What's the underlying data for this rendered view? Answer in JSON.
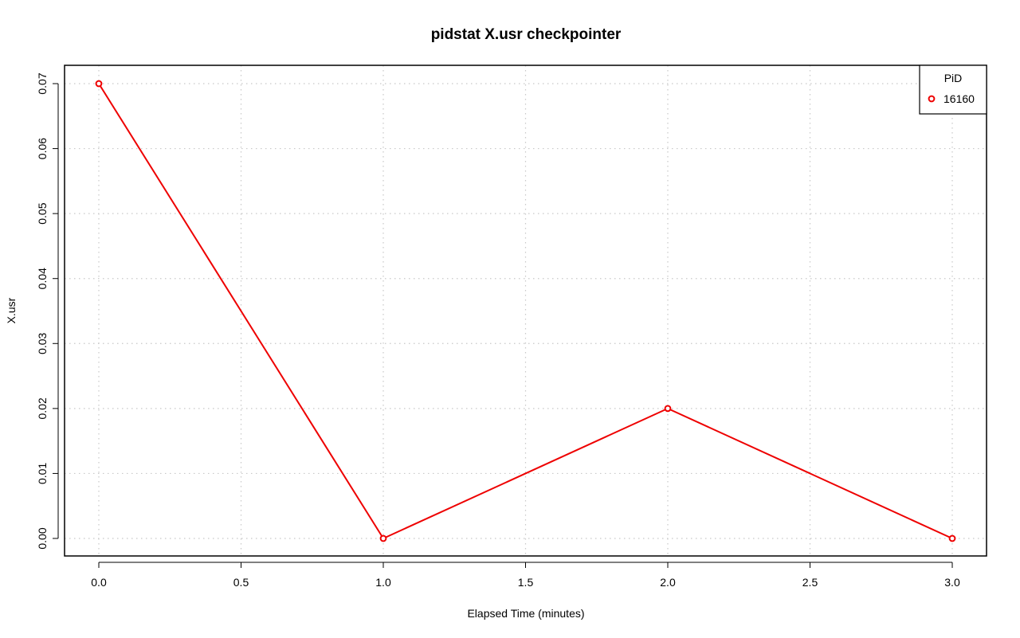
{
  "colors": {
    "series": "#ee0000",
    "grid": "#c8c8c8",
    "axis": "#000000",
    "background": "#ffffff"
  },
  "chart_data": {
    "type": "line",
    "title": "pidstat X.usr checkpointer",
    "xlabel": "Elapsed Time (minutes)",
    "ylabel": "X.usr",
    "xlim": [
      0.0,
      3.0
    ],
    "ylim": [
      0.0,
      0.07
    ],
    "x_ticks": [
      0.0,
      0.5,
      1.0,
      1.5,
      2.0,
      2.5,
      3.0
    ],
    "x_tick_labels": [
      "0.0",
      "0.5",
      "1.0",
      "1.5",
      "2.0",
      "2.5",
      "3.0"
    ],
    "y_ticks": [
      0.0,
      0.01,
      0.02,
      0.03,
      0.04,
      0.05,
      0.06,
      0.07
    ],
    "y_tick_labels": [
      "0.00",
      "0.01",
      "0.02",
      "0.03",
      "0.04",
      "0.05",
      "0.06",
      "0.07"
    ],
    "grid": true,
    "legend": {
      "title": "PiD",
      "placement": "top-right",
      "entries": [
        "16160"
      ]
    },
    "series": [
      {
        "name": "16160",
        "x": [
          0.0,
          1.0,
          2.0,
          3.0
        ],
        "y": [
          0.07,
          0.0,
          0.02,
          0.0
        ],
        "marker": "open-circle"
      }
    ]
  }
}
